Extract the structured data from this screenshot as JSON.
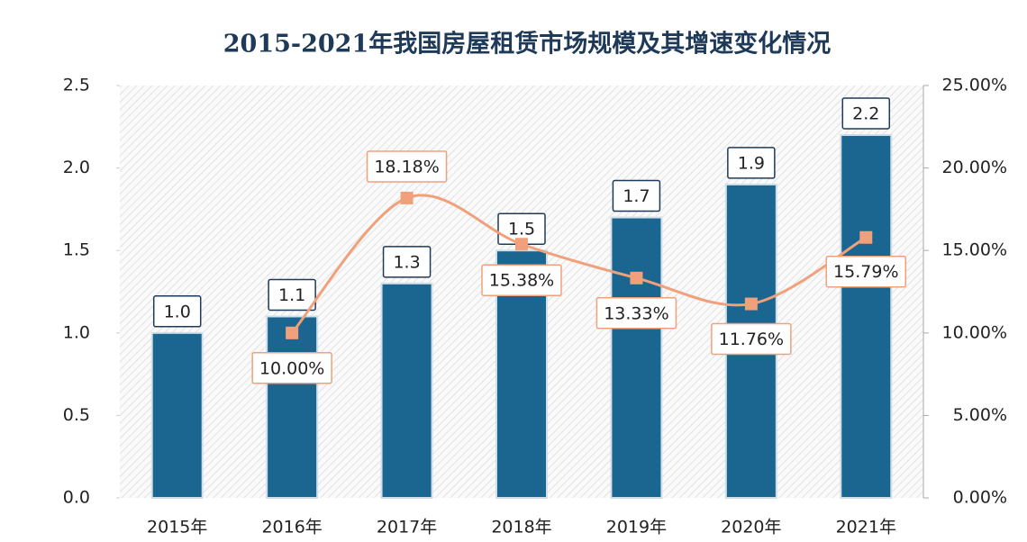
{
  "chart_data": {
    "type": "bar",
    "title": "2015-2021年我国房屋租赁市场规模及其增速变化情况",
    "categories": [
      "2015年",
      "2016年",
      "2017年",
      "2018年",
      "2019年",
      "2020年",
      "2021年"
    ],
    "series": [
      {
        "type": "bar",
        "color": "#1a6690",
        "values": [
          1.0,
          1.1,
          1.3,
          1.5,
          1.7,
          1.9,
          2.2
        ],
        "value_labels": [
          "1.0",
          "1.1",
          "1.3",
          "1.5",
          "1.7",
          "1.9",
          "2.2"
        ]
      },
      {
        "type": "line",
        "axis": "y2",
        "color": "#f0a07a",
        "values": [
          null,
          10.0,
          18.18,
          15.38,
          13.33,
          11.76,
          15.79
        ],
        "value_labels": [
          null,
          "10.00%",
          "18.18%",
          "15.38%",
          "13.33%",
          "11.76%",
          "15.79%"
        ]
      }
    ],
    "ylim": [
      0,
      2.5
    ],
    "yticks": [
      {
        "value": 0,
        "label": "0.0"
      },
      0.5,
      {
        "value": 1,
        "label": "1.0"
      },
      1.5,
      {
        "value": 2,
        "label": "2.0"
      },
      2.5
    ],
    "y2lim": [
      0,
      25
    ],
    "y2ticks": [
      {
        "value": 0,
        "label": "0.00%"
      },
      {
        "value": 5,
        "label": "5.00%"
      },
      {
        "value": 10,
        "label": "10.00%"
      },
      {
        "value": 15,
        "label": "15.00%"
      },
      {
        "value": 20,
        "label": "20.00%"
      },
      {
        "value": 25,
        "label": "25.00%"
      }
    ],
    "grid": false
  }
}
